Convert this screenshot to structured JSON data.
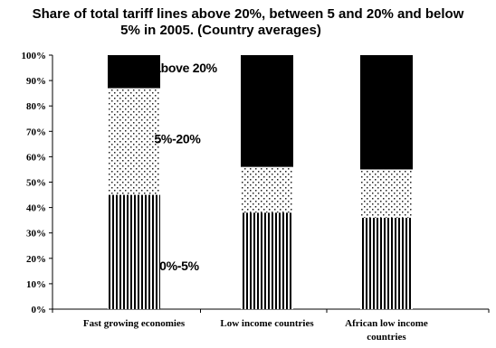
{
  "chart_data": {
    "type": "bar",
    "stacked": true,
    "title_line1": "Share of total tariff lines above 20%, between 5 and 20% and below",
    "title_line2": "5% in 2005. (Country averages)",
    "categories": [
      [
        "Fast growing economies"
      ],
      [
        "Low income countries"
      ],
      [
        "African low income",
        "countries"
      ]
    ],
    "series": [
      {
        "name": "0%-5%",
        "values": [
          45,
          38,
          36
        ],
        "pattern": "vertical-stripes"
      },
      {
        "name": "5%-20%",
        "values": [
          42,
          18,
          19
        ],
        "pattern": "dots"
      },
      {
        "name": "above 20%",
        "values": [
          13,
          44,
          45
        ],
        "pattern": "solid-black"
      }
    ],
    "ylim": [
      0,
      100
    ],
    "yticks": [
      "0%",
      "10%",
      "20%",
      "30%",
      "40%",
      "50%",
      "60%",
      "70%",
      "80%",
      "90%",
      "100%"
    ],
    "annotations": [
      {
        "text": "above 20%",
        "value": 95
      },
      {
        "text": "5%-20%",
        "value": 67
      },
      {
        "text": "0%-5%",
        "value": 17
      }
    ],
    "grid": false,
    "legend": "none"
  }
}
